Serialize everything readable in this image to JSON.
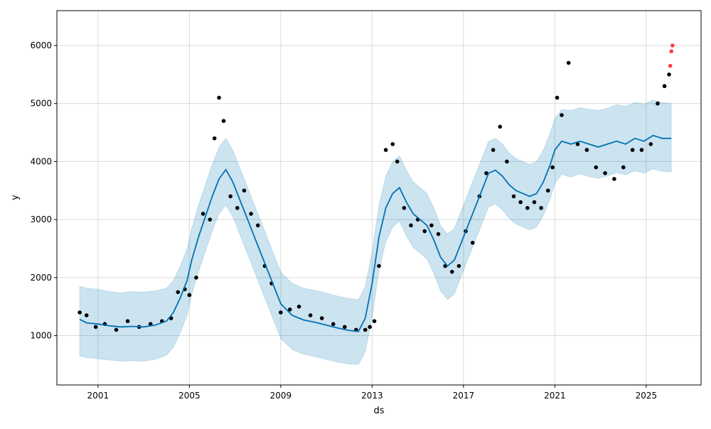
{
  "chart_data": {
    "type": "line",
    "title": "",
    "xlabel": "ds",
    "ylabel": "y",
    "xlim": [
      1999.2,
      2027.4
    ],
    "ylim": [
      150,
      6600
    ],
    "grid": true,
    "x_ticks": [
      2001,
      2005,
      2009,
      2013,
      2017,
      2021,
      2025
    ],
    "x_tick_labels": [
      "2001",
      "2005",
      "2009",
      "2013",
      "2017",
      "2021",
      "2025"
    ],
    "y_ticks": [
      1000,
      2000,
      3000,
      4000,
      5000,
      6000
    ],
    "y_tick_labels": [
      "1000",
      "2000",
      "3000",
      "4000",
      "5000",
      "6000"
    ],
    "colors": {
      "forecast_line": "#0072B2",
      "uncertainty_band": "#0072B2",
      "observed_points": "#000000",
      "recent_points": "#ff0000",
      "grid": "#d9d9d9"
    },
    "series": [
      {
        "role": "forecast",
        "x": [
          2000.2,
          2000.5,
          2001.0,
          2001.5,
          2002.0,
          2002.5,
          2003.0,
          2003.5,
          2004.0,
          2004.3,
          2004.6,
          2004.9,
          2005.1,
          2005.4,
          2005.7,
          2006.0,
          2006.3,
          2006.6,
          2006.9,
          2007.2,
          2007.5,
          2007.8,
          2008.1,
          2008.4,
          2008.7,
          2009.0,
          2009.5,
          2010.0,
          2010.5,
          2011.0,
          2011.5,
          2012.0,
          2012.4,
          2012.7,
          2013.0,
          2013.3,
          2013.6,
          2013.9,
          2014.2,
          2014.5,
          2014.8,
          2015.1,
          2015.4,
          2015.7,
          2016.0,
          2016.3,
          2016.6,
          2016.9,
          2017.2,
          2017.5,
          2017.8,
          2018.1,
          2018.4,
          2018.7,
          2019.0,
          2019.3,
          2019.6,
          2019.9,
          2020.2,
          2020.5,
          2020.8,
          2021.0,
          2021.3,
          2021.7,
          2022.1,
          2022.5,
          2022.9,
          2023.3,
          2023.7,
          2024.1,
          2024.5,
          2024.9,
          2025.3,
          2025.7,
          2026.1
        ],
        "y": [
          1280,
          1220,
          1200,
          1170,
          1150,
          1160,
          1150,
          1180,
          1250,
          1400,
          1650,
          1950,
          2300,
          2700,
          3050,
          3400,
          3700,
          3860,
          3650,
          3350,
          3050,
          2750,
          2450,
          2150,
          1850,
          1550,
          1350,
          1270,
          1230,
          1180,
          1130,
          1090,
          1070,
          1300,
          1900,
          2700,
          3200,
          3450,
          3550,
          3300,
          3100,
          3000,
          2900,
          2650,
          2350,
          2200,
          2300,
          2600,
          2900,
          3200,
          3500,
          3800,
          3850,
          3750,
          3600,
          3500,
          3450,
          3400,
          3450,
          3650,
          3950,
          4200,
          4350,
          4300,
          4350,
          4300,
          4250,
          4300,
          4350,
          4300,
          4400,
          4350,
          4450,
          4400,
          4400
        ]
      },
      {
        "role": "uncertainty_upper",
        "x": [
          2000.2,
          2000.5,
          2001.0,
          2001.5,
          2002.0,
          2002.5,
          2003.0,
          2003.5,
          2004.0,
          2004.3,
          2004.6,
          2004.9,
          2005.1,
          2005.4,
          2005.7,
          2006.0,
          2006.3,
          2006.6,
          2006.9,
          2007.2,
          2007.5,
          2007.8,
          2008.1,
          2008.4,
          2008.7,
          2009.0,
          2009.5,
          2010.0,
          2010.5,
          2011.0,
          2011.5,
          2012.0,
          2012.4,
          2012.7,
          2013.0,
          2013.3,
          2013.6,
          2013.9,
          2014.2,
          2014.5,
          2014.8,
          2015.1,
          2015.4,
          2015.7,
          2016.0,
          2016.3,
          2016.6,
          2016.9,
          2017.2,
          2017.5,
          2017.8,
          2018.1,
          2018.4,
          2018.7,
          2019.0,
          2019.3,
          2019.6,
          2019.9,
          2020.2,
          2020.5,
          2020.8,
          2021.0,
          2021.3,
          2021.7,
          2022.1,
          2022.5,
          2022.9,
          2023.3,
          2023.7,
          2024.1,
          2024.5,
          2024.9,
          2025.3,
          2025.7,
          2026.1
        ],
        "y": [
          1850,
          1820,
          1800,
          1760,
          1740,
          1760,
          1750,
          1770,
          1820,
          1950,
          2200,
          2500,
          2850,
          3250,
          3600,
          3950,
          4250,
          4400,
          4200,
          3900,
          3600,
          3300,
          3000,
          2700,
          2400,
          2100,
          1900,
          1820,
          1780,
          1730,
          1680,
          1640,
          1620,
          1850,
          2450,
          3250,
          3750,
          4000,
          4100,
          3850,
          3650,
          3550,
          3450,
          3200,
          2900,
          2750,
          2850,
          3150,
          3450,
          3750,
          4050,
          4350,
          4400,
          4300,
          4150,
          4050,
          4000,
          3950,
          4000,
          4200,
          4500,
          4750,
          4900,
          4880,
          4930,
          4900,
          4880,
          4920,
          4980,
          4950,
          5020,
          4990,
          5060,
          5020,
          5000
        ]
      },
      {
        "role": "uncertainty_lower",
        "x": [
          2000.2,
          2000.5,
          2001.0,
          2001.5,
          2002.0,
          2002.5,
          2003.0,
          2003.5,
          2004.0,
          2004.3,
          2004.6,
          2004.9,
          2005.1,
          2005.4,
          2005.7,
          2006.0,
          2006.3,
          2006.6,
          2006.9,
          2007.2,
          2007.5,
          2007.8,
          2008.1,
          2008.4,
          2008.7,
          2009.0,
          2009.5,
          2010.0,
          2010.5,
          2011.0,
          2011.5,
          2012.0,
          2012.4,
          2012.7,
          2013.0,
          2013.3,
          2013.6,
          2013.9,
          2014.2,
          2014.5,
          2014.8,
          2015.1,
          2015.4,
          2015.7,
          2016.0,
          2016.3,
          2016.6,
          2016.9,
          2017.2,
          2017.5,
          2017.8,
          2018.1,
          2018.4,
          2018.7,
          2019.0,
          2019.3,
          2019.6,
          2019.9,
          2020.2,
          2020.5,
          2020.8,
          2021.0,
          2021.3,
          2021.7,
          2022.1,
          2022.5,
          2022.9,
          2023.3,
          2023.7,
          2024.1,
          2024.5,
          2024.9,
          2025.3,
          2025.7,
          2026.1
        ],
        "y": [
          650,
          620,
          600,
          580,
          560,
          570,
          560,
          590,
          660,
          800,
          1050,
          1350,
          1700,
          2100,
          2450,
          2800,
          3100,
          3250,
          3050,
          2750,
          2450,
          2150,
          1850,
          1550,
          1250,
          950,
          760,
          680,
          640,
          590,
          540,
          510,
          500,
          720,
          1320,
          2120,
          2620,
          2870,
          2970,
          2720,
          2520,
          2420,
          2320,
          2070,
          1770,
          1620,
          1720,
          2020,
          2320,
          2620,
          2920,
          3220,
          3270,
          3170,
          3020,
          2920,
          2870,
          2820,
          2870,
          3070,
          3370,
          3620,
          3780,
          3730,
          3790,
          3740,
          3710,
          3750,
          3810,
          3770,
          3840,
          3800,
          3870,
          3830,
          3820
        ]
      },
      {
        "role": "observed",
        "x": [
          2000.2,
          2000.5,
          2000.9,
          2001.3,
          2001.8,
          2002.3,
          2002.8,
          2003.3,
          2003.8,
          2004.2,
          2004.5,
          2004.8,
          2005.0,
          2005.3,
          2005.6,
          2005.9,
          2006.1,
          2006.3,
          2006.5,
          2006.8,
          2007.1,
          2007.4,
          2007.7,
          2008.0,
          2008.3,
          2008.6,
          2009.0,
          2009.4,
          2009.8,
          2010.3,
          2010.8,
          2011.3,
          2011.8,
          2012.3,
          2012.7,
          2012.9,
          2013.1,
          2013.3,
          2013.6,
          2013.9,
          2014.1,
          2014.4,
          2014.7,
          2015.0,
          2015.3,
          2015.6,
          2015.9,
          2016.2,
          2016.5,
          2016.8,
          2017.1,
          2017.4,
          2017.7,
          2018.0,
          2018.3,
          2018.6,
          2018.9,
          2019.2,
          2019.5,
          2019.8,
          2020.1,
          2020.4,
          2020.7,
          2020.9,
          2021.1,
          2021.3,
          2021.6,
          2022.0,
          2022.4,
          2022.8,
          2023.2,
          2023.6,
          2024.0,
          2024.4,
          2024.8,
          2025.2,
          2025.5,
          2025.8,
          2026.0
        ],
        "y": [
          1400,
          1350,
          1150,
          1200,
          1100,
          1250,
          1150,
          1200,
          1250,
          1300,
          1750,
          1800,
          1700,
          2000,
          3100,
          3000,
          4400,
          5100,
          4700,
          3400,
          3200,
          3500,
          3100,
          2900,
          2200,
          1900,
          1400,
          1450,
          1500,
          1350,
          1300,
          1200,
          1150,
          1100,
          1100,
          1150,
          1250,
          2200,
          4200,
          4300,
          4000,
          3200,
          2900,
          3000,
          2800,
          2900,
          2750,
          2200,
          2100,
          2200,
          2800,
          2600,
          3400,
          3800,
          4200,
          4600,
          4000,
          3400,
          3300,
          3200,
          3300,
          3200,
          3500,
          3900,
          5100,
          4800,
          5700,
          4300,
          4200,
          3900,
          3800,
          3700,
          3900,
          4200,
          4200,
          4300,
          5000,
          5300,
          5500
        ]
      },
      {
        "role": "recent",
        "x": [
          2026.05,
          2026.1,
          2026.15
        ],
        "y": [
          5650,
          5900,
          6000
        ]
      }
    ]
  }
}
